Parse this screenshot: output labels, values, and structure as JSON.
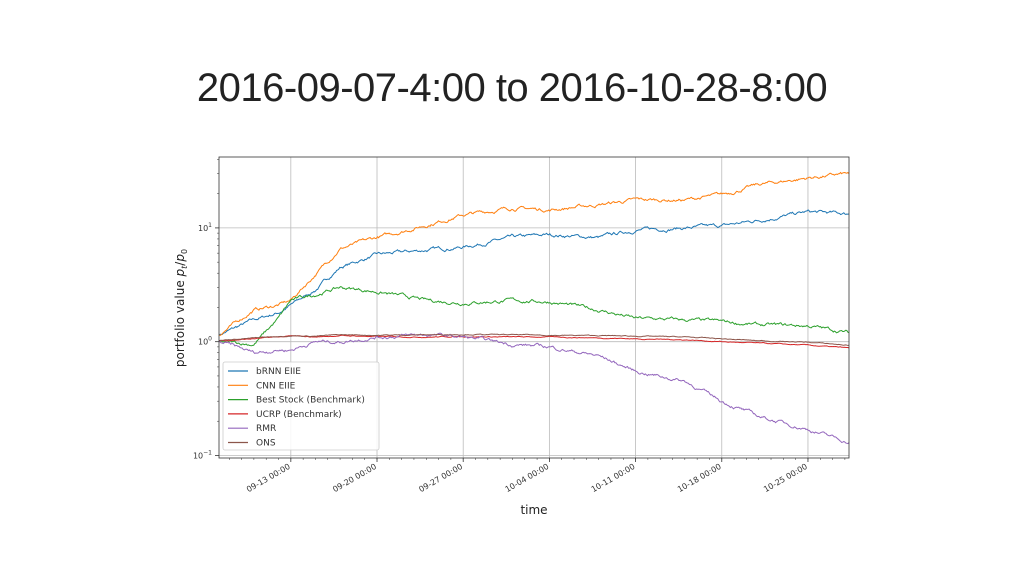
{
  "title": "2016-09-07-4:00 to 2016-10-28-8:00",
  "chart_data": {
    "type": "line",
    "title": "2016-09-07-4:00 to 2016-10-28-8:00",
    "xlabel": "time",
    "ylabel": "portfolio value p_t/p_0",
    "yscale": "log",
    "ylim": [
      0.095,
      42
    ],
    "xlim": [
      "2016-09-07T04:00",
      "2016-10-28T08:00"
    ],
    "grid": true,
    "legend_position": "lower-left",
    "x_ticks": [
      "09-13 00:00",
      "09-20 00:00",
      "09-27 00:00",
      "10-04 00:00",
      "10-11 00:00",
      "10-18 00:00",
      "10-25 00:00"
    ],
    "x_tick_dates": [
      "2016-09-13",
      "2016-09-20",
      "2016-09-27",
      "2016-10-04",
      "2016-10-11",
      "2016-10-18",
      "2016-10-25"
    ],
    "y_ticks": [
      {
        "value": 0.1,
        "base": "10",
        "exp": "−1"
      },
      {
        "value": 1,
        "base": "10",
        "exp": "0"
      },
      {
        "value": 10,
        "base": "10",
        "exp": "1"
      }
    ],
    "dates": [
      "2016-09-07T04:00",
      "2016-09-10",
      "2016-09-12",
      "2016-09-13",
      "2016-09-15",
      "2016-09-17",
      "2016-09-20",
      "2016-09-24",
      "2016-09-27",
      "2016-10-01",
      "2016-10-04",
      "2016-10-08",
      "2016-10-11",
      "2016-10-15",
      "2016-10-18",
      "2016-10-21",
      "2016-10-25",
      "2016-10-28T08:00"
    ],
    "series": [
      {
        "name": "bRNN EIIE",
        "color": "#1f77b4",
        "values": [
          1.15,
          1.55,
          1.8,
          2.1,
          2.85,
          4.5,
          5.8,
          6.4,
          6.8,
          8.2,
          8.7,
          8.2,
          9.6,
          10.0,
          10.4,
          11.7,
          13.8,
          13.3
        ]
      },
      {
        "name": "CNN EIIE",
        "color": "#ff7f0e",
        "values": [
          1.15,
          1.9,
          2.1,
          2.3,
          3.9,
          6.6,
          8.2,
          10.6,
          13.0,
          15.0,
          14.4,
          16.0,
          17.6,
          17.6,
          19.5,
          24.0,
          27.5,
          30.0
        ]
      },
      {
        "name": "Best Stock (Benchmark)",
        "color": "#2ca02c",
        "values": [
          1.0,
          0.95,
          1.6,
          2.3,
          2.6,
          3.0,
          2.75,
          2.3,
          2.2,
          2.3,
          2.25,
          1.9,
          1.6,
          1.55,
          1.5,
          1.4,
          1.38,
          1.2
        ]
      },
      {
        "name": "UCRP (Benchmark)",
        "color": "#d62728",
        "values": [
          1.02,
          1.06,
          1.1,
          1.12,
          1.1,
          1.13,
          1.11,
          1.1,
          1.11,
          1.1,
          1.1,
          1.08,
          1.06,
          1.04,
          1.0,
          0.97,
          0.93,
          0.88
        ]
      },
      {
        "name": "RMR",
        "color": "#9467bd",
        "values": [
          1.0,
          0.8,
          0.85,
          0.85,
          1.0,
          1.0,
          1.1,
          1.15,
          1.1,
          0.95,
          0.9,
          0.75,
          0.55,
          0.45,
          0.3,
          0.22,
          0.17,
          0.13
        ]
      },
      {
        "name": "ONS",
        "color": "#8c564b",
        "values": [
          1.02,
          1.08,
          1.12,
          1.13,
          1.12,
          1.15,
          1.14,
          1.15,
          1.16,
          1.15,
          1.14,
          1.13,
          1.12,
          1.1,
          1.06,
          1.02,
          0.99,
          0.93
        ]
      }
    ]
  }
}
